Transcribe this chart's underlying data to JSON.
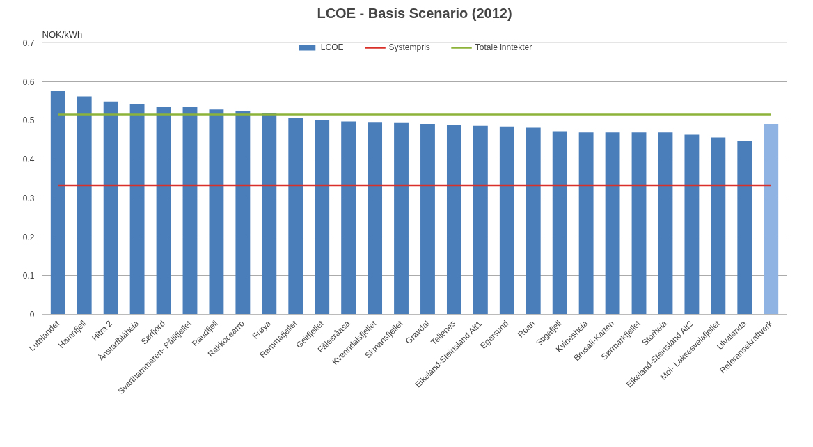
{
  "chart_data": {
    "type": "bar",
    "title": "LCOE - Basis Scenario (2012)",
    "ylabel": "NOK/kWh",
    "categories": [
      "Lutelandet",
      "Hamnfjell",
      "Hitra 2",
      "Ånstadbláheia",
      "Sørfjord",
      "Svarthammaren- Pållifjellet",
      "Raudfjell",
      "Rakkocearro",
      "Frøya",
      "Remmafjellet",
      "Geitfjellet",
      "Fålesråasa",
      "Kvenndalsfjellet",
      "Skinansfjellet",
      "Gravdal",
      "Tellenes",
      "Eikeland-Steinsland Alt1",
      "Egersund",
      "Roan",
      "Stigafjell",
      "Kvinesheia",
      "Brusali-Karten",
      "Sørmarkfjellet",
      "Storheia",
      "Eikeland-Steinsland Alt2",
      "Moi- Laksesvelafjellet",
      "Ulvalanda",
      "Referansekraftverk"
    ],
    "series": [
      {
        "name": "LCOE",
        "color": "#4a7ebb",
        "colors": [
          "#4a7ebb",
          "#4a7ebb",
          "#4a7ebb",
          "#4a7ebb",
          "#4a7ebb",
          "#4a7ebb",
          "#4a7ebb",
          "#4a7ebb",
          "#4a7ebb",
          "#4a7ebb",
          "#4a7ebb",
          "#4a7ebb",
          "#4a7ebb",
          "#4a7ebb",
          "#4a7ebb",
          "#4a7ebb",
          "#4a7ebb",
          "#4a7ebb",
          "#4a7ebb",
          "#4a7ebb",
          "#4a7ebb",
          "#4a7ebb",
          "#4a7ebb",
          "#4a7ebb",
          "#4a7ebb",
          "#4a7ebb",
          "#4a7ebb",
          "#8fb4e3"
        ],
        "values": [
          0.577,
          0.562,
          0.549,
          0.542,
          0.534,
          0.534,
          0.528,
          0.525,
          0.519,
          0.507,
          0.501,
          0.497,
          0.496,
          0.495,
          0.491,
          0.489,
          0.486,
          0.484,
          0.481,
          0.472,
          0.469,
          0.469,
          0.469,
          0.469,
          0.463,
          0.456,
          0.446,
          0.491
        ]
      },
      {
        "name": "Systempris",
        "type": "line",
        "color": "#d9302a",
        "values": [
          0.333,
          0.333,
          0.333,
          0.333,
          0.333,
          0.333,
          0.333,
          0.333,
          0.333,
          0.333,
          0.333,
          0.333,
          0.333,
          0.333,
          0.333,
          0.333,
          0.333,
          0.333,
          0.333,
          0.333,
          0.333,
          0.333,
          0.333,
          0.333,
          0.333,
          0.333,
          0.333,
          0.333
        ]
      },
      {
        "name": "Totale inntekter",
        "type": "line",
        "color": "#8db33a",
        "values": [
          0.515,
          0.515,
          0.515,
          0.515,
          0.515,
          0.515,
          0.515,
          0.515,
          0.515,
          0.515,
          0.515,
          0.515,
          0.515,
          0.515,
          0.515,
          0.515,
          0.515,
          0.515,
          0.515,
          0.515,
          0.515,
          0.515,
          0.515,
          0.515,
          0.515,
          0.515,
          0.515,
          0.515
        ]
      }
    ],
    "ylim": [
      0,
      0.7
    ],
    "yticks": [
      {
        "value": 0,
        "label": "0"
      },
      0.1,
      0.2,
      0.3,
      0.4,
      0.5,
      0.6,
      0.7
    ],
    "grid": "y",
    "legend": "top"
  }
}
